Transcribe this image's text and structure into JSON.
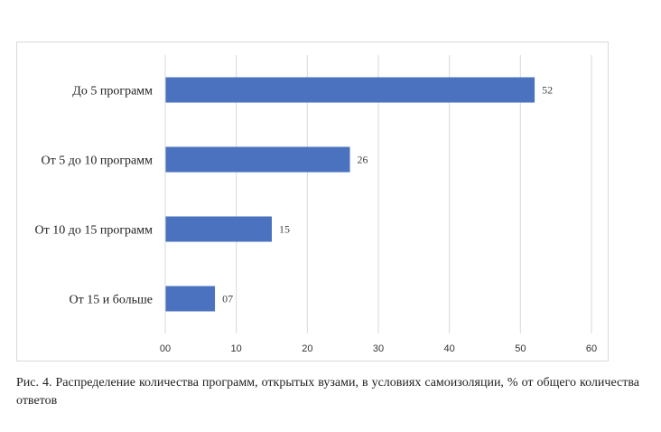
{
  "chart_data": {
    "type": "bar",
    "orientation": "horizontal",
    "categories": [
      "До 5 программ",
      "От 5 до 10 программ",
      "От 10 до 15 программ",
      "От 15 и больше"
    ],
    "values": [
      52,
      26,
      15,
      7
    ],
    "value_labels": [
      "52",
      "26",
      "15",
      "07"
    ],
    "xlim": [
      0,
      60
    ],
    "x_ticks": [
      0,
      10,
      20,
      30,
      40,
      50,
      60
    ],
    "x_tick_labels": [
      "00",
      "10",
      "20",
      "30",
      "40",
      "50",
      "60"
    ],
    "bar_color": "#4a72bf",
    "grid": true,
    "legend": "none"
  },
  "caption": "Рис. 4. Распределение количества программ, открытых вузами, в условиях самоизоляции, % от общего количества ответов"
}
